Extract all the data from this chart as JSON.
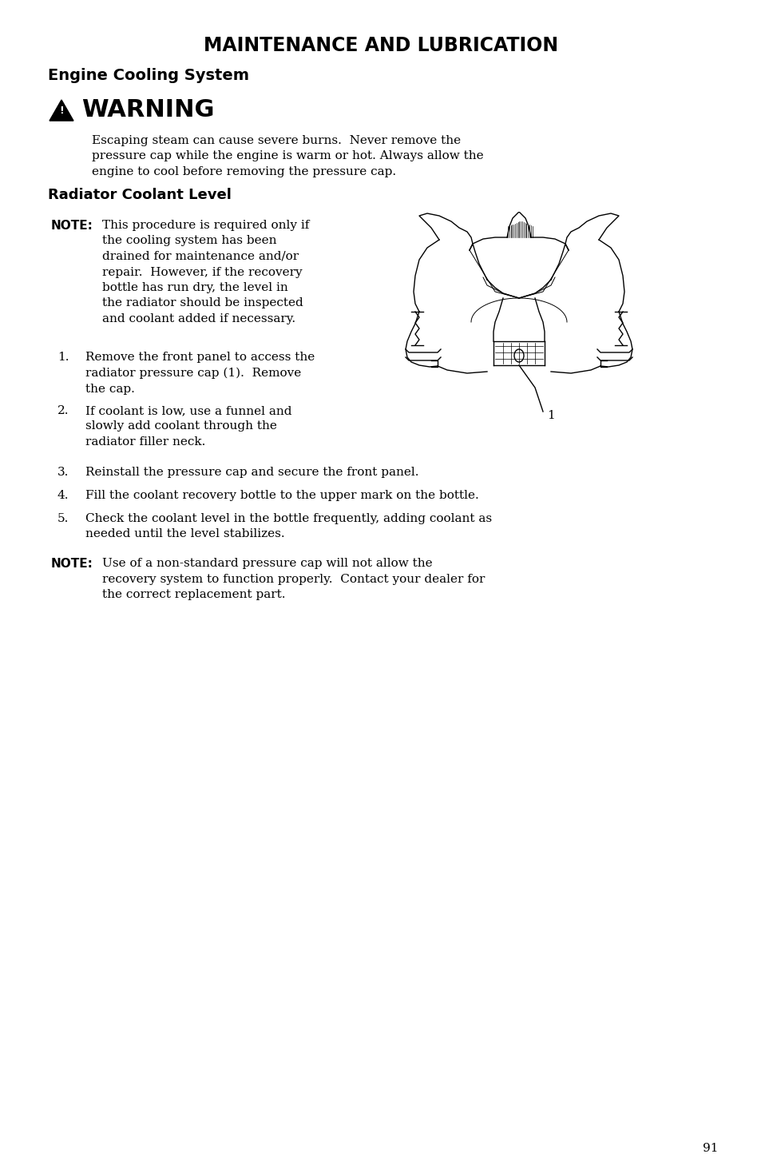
{
  "title": "MAINTENANCE AND LUBRICATION",
  "subtitle": "Engine Cooling System",
  "warning_title": "⚠  WARNING",
  "warning_text": "Escaping steam can cause severe burns.  Never remove the\npressure cap while the engine is warm or hot. Always allow the\nengine to cool before removing the pressure cap.",
  "section_title": "Radiator Coolant Level",
  "note1_label": "NOTE:",
  "note1_text": "This procedure is required only if\nthe cooling system has been\ndrained for maintenance and/or\nrepair.  However, if the recovery\nbottle has run dry, the level in\nthe radiator should be inspected\nand coolant added if necessary.",
  "steps": [
    "Remove the front panel to access the\nradiator pressure cap (1).  Remove\nthe cap.",
    "If coolant is low, use a funnel and\nslowly add coolant through the\nradiator filler neck.",
    "Reinstall the pressure cap and secure the front panel.",
    "Fill the coolant recovery bottle to the upper mark on the bottle.",
    "Check the coolant level in the bottle frequently, adding coolant as\nneeded until the level stabilizes."
  ],
  "note2_label": "NOTE:",
  "note2_text": "Use of a non-standard pressure cap will not allow the\nrecovery system to function properly.  Contact your dealer for\nthe correct replacement part.",
  "page_number": "91",
  "bg_color": "#ffffff",
  "text_color": "#000000"
}
